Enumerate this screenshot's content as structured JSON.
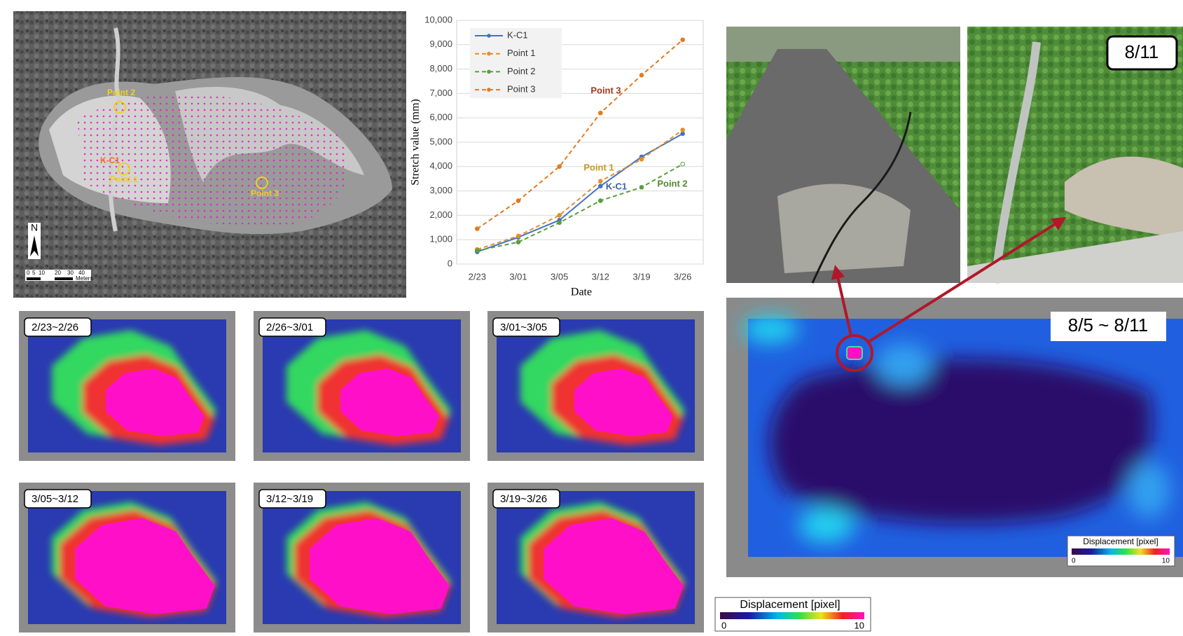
{
  "chart_data": {
    "type": "line",
    "xlabel": "Date",
    "ylabel": "Stretch value (mm)",
    "categories": [
      "2/23",
      "3/01",
      "3/05",
      "3/12",
      "3/19",
      "3/26"
    ],
    "series": [
      {
        "name": "K-C1",
        "color": "#4472c4",
        "dashed": false,
        "values": [
          500,
          1100,
          1800,
          3200,
          4400,
          5350
        ]
      },
      {
        "name": "Point 1",
        "color": "#e0902a",
        "dashed": true,
        "values": [
          600,
          1150,
          2000,
          3400,
          4300,
          5500
        ]
      },
      {
        "name": "Point 2",
        "color": "#5a9e3c",
        "dashed": true,
        "values": [
          550,
          900,
          1700,
          2600,
          3150,
          4100
        ]
      },
      {
        "name": "Point 3",
        "color": "#e07b22",
        "dashed": true,
        "values": [
          1450,
          2600,
          4000,
          6200,
          7750,
          9200
        ]
      }
    ],
    "ylim": [
      0,
      10000
    ],
    "yticks": [
      0,
      {
        "value": 1000,
        "label": "1,000"
      },
      {
        "value": 2000,
        "label": "2,000"
      },
      {
        "value": 3000,
        "label": "3,000"
      },
      {
        "value": 4000,
        "label": "4,000"
      },
      {
        "value": 5000,
        "label": "5,000"
      },
      {
        "value": 6000,
        "label": "6,000"
      },
      {
        "value": 7000,
        "label": "7,000"
      },
      {
        "value": 8000,
        "label": "8,000"
      },
      {
        "value": 9000,
        "label": "9,000"
      },
      {
        "value": 10000,
        "label": "10,000"
      }
    ],
    "grid": true,
    "legend": "top-left",
    "annotations": [
      {
        "text": "Point 3",
        "color": "#9e3a1f"
      },
      {
        "text": "Point 1",
        "color": "#c8951e"
      },
      {
        "text": "K-C1",
        "color": "#3b5ea8"
      },
      {
        "text": "Point 2",
        "color": "#4f8a2e"
      }
    ]
  },
  "aerial_map": {
    "labels": [
      "Point 2",
      "K-C1",
      "Point 1",
      "Point 3"
    ],
    "north": "N",
    "scale_labels": [
      "0",
      "5",
      "10",
      "20",
      "30",
      "40"
    ],
    "scale_unit": "Meters"
  },
  "displacement_periods": [
    "2/23~2/26",
    "2/26~3/01",
    "3/01~3/05",
    "3/05~3/12",
    "3/12~3/19",
    "3/19~3/26"
  ],
  "photo_date": "8/11",
  "event_period": "8/5 ~ 8/11",
  "colorbars": [
    {
      "title": "Displacement [pixel]",
      "min": 0,
      "max": 10
    },
    {
      "title": "Displacement [pixel]",
      "min": 0,
      "max": 10
    }
  ]
}
